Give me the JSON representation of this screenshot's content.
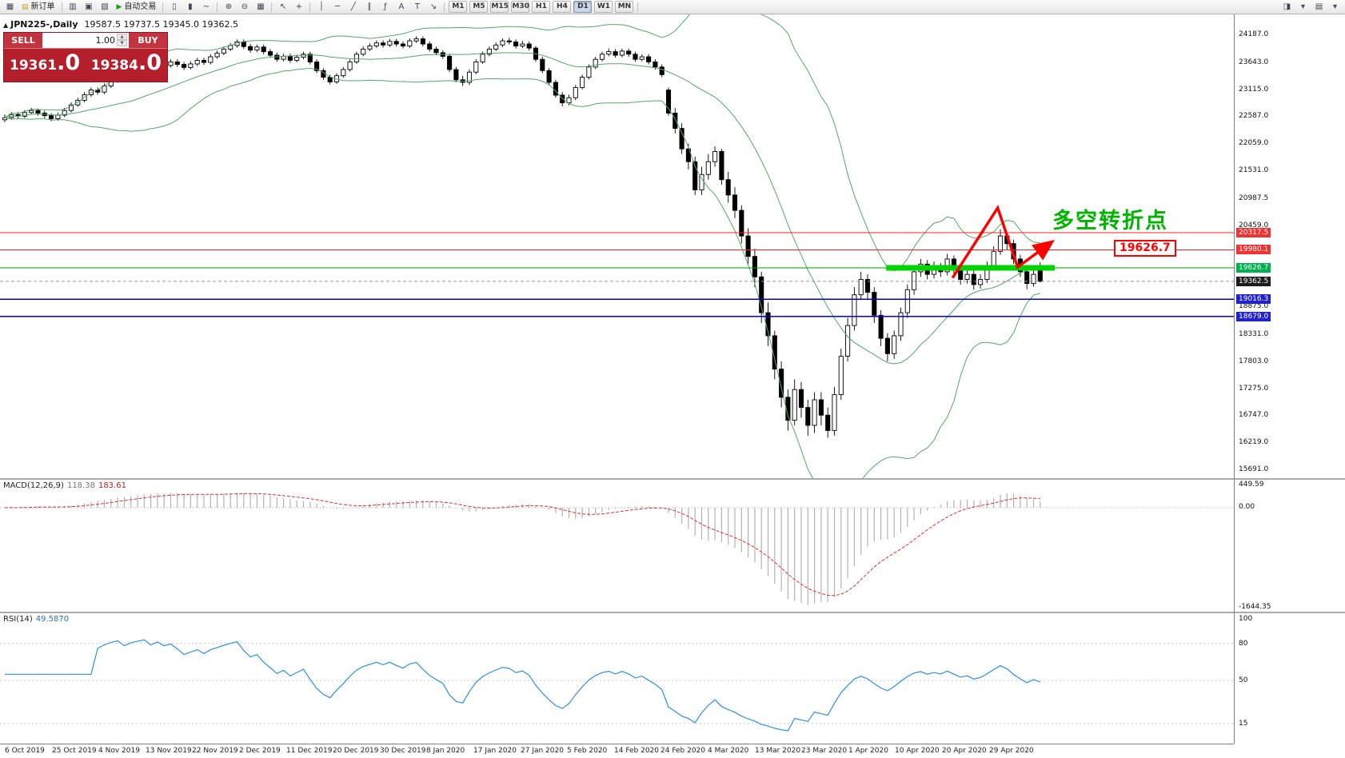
{
  "toolbar": {
    "items": [
      {
        "t": "icon",
        "g": "▦",
        "n": "new-chart-icon"
      },
      {
        "t": "btn",
        "g": "▤",
        "gc": "#c8a020",
        "l": "新订单",
        "n": "new-order-button"
      },
      {
        "t": "sep"
      },
      {
        "t": "icon",
        "g": "▥",
        "n": "market-watch-icon"
      },
      {
        "t": "icon",
        "g": "▣",
        "n": "data-window-icon"
      },
      {
        "t": "icon",
        "g": "▧",
        "n": "navigator-icon"
      },
      {
        "t": "btn",
        "g": "▶",
        "gc": "#18a018",
        "l": "自动交易",
        "n": "autotrading-button"
      },
      {
        "t": "sep"
      },
      {
        "t": "icon",
        "g": "▯",
        "n": "bar-chart-mode-icon"
      },
      {
        "t": "icon",
        "g": "▮",
        "n": "candlestick-mode-icon"
      },
      {
        "t": "icon",
        "g": "~",
        "n": "line-chart-mode-icon"
      },
      {
        "t": "sep"
      },
      {
        "t": "icon",
        "g": "⊕",
        "n": "zoom-in-icon"
      },
      {
        "t": "icon",
        "g": "⊖",
        "n": "zoom-out-icon"
      },
      {
        "t": "icon",
        "g": "▦",
        "n": "tile-windows-icon"
      },
      {
        "t": "sep"
      },
      {
        "t": "icon",
        "g": "↖",
        "n": "cursor-icon"
      },
      {
        "t": "icon",
        "g": "+",
        "n": "crosshair-icon"
      },
      {
        "t": "sep"
      },
      {
        "t": "icon",
        "g": "│",
        "n": "vertical-line-icon"
      },
      {
        "t": "icon",
        "g": "─",
        "n": "horizontal-line-icon"
      },
      {
        "t": "icon",
        "g": "╱",
        "n": "trendline-icon"
      },
      {
        "t": "icon",
        "g": "∥",
        "n": "channel-icon"
      },
      {
        "t": "icon",
        "g": "ƒ",
        "n": "fibonacci-icon"
      },
      {
        "t": "icon",
        "g": "A",
        "n": "text-icon"
      },
      {
        "t": "icon",
        "g": "T",
        "n": "text-label-icon"
      },
      {
        "t": "icon",
        "g": "↘",
        "n": "arrow-tools-icon"
      },
      {
        "t": "sep"
      },
      {
        "t": "tfgroup"
      },
      {
        "t": "sep"
      },
      {
        "t": "right"
      },
      {
        "t": "icon",
        "g": "◨",
        "n": "chart-window-icon"
      },
      {
        "t": "icon",
        "g": "▾",
        "n": "dropdown-icon"
      },
      {
        "t": "icon",
        "g": "▤",
        "n": "profiles-icon"
      },
      {
        "t": "icon",
        "g": "▾",
        "n": "dropdown-icon"
      }
    ],
    "timeframes": [
      "M1",
      "M5",
      "M15",
      "M30",
      "H1",
      "H4",
      "D1",
      "W1",
      "MN"
    ],
    "active_timeframe": "D1"
  },
  "trade_panel": {
    "sell_label": "SELL",
    "buy_label": "BUY",
    "volume": "1.00",
    "sell_price": "19361.0",
    "buy_price": "19384.0"
  },
  "chart": {
    "symbol": "JPN225-,Daily",
    "ohlc": "19587.5 19737.5 19345.0 19362.5"
  },
  "annotations": {
    "turning_point_text": "多空转折点",
    "level_label": "19626.7"
  },
  "macd": {
    "label": "MACD(12,26,9)",
    "value_main": "118.38",
    "value_signal": "183.61",
    "axis_labels": [
      "449.59",
      "0.00",
      "-1644.35"
    ]
  },
  "rsi": {
    "label": "RSI(14)",
    "value": "49.5870",
    "levels": [
      80,
      50,
      15
    ],
    "axis_labels": [
      "100",
      "80",
      "50",
      "15"
    ]
  },
  "axis": {
    "price_ticks": [
      24187.0,
      23643.0,
      23115.0,
      22587.0,
      22059.0,
      21531.0,
      20987.5,
      20459.0,
      18875.0,
      18331.0,
      17803.0,
      17275.0,
      16747.0,
      16219.0,
      15691.0
    ],
    "badges": [
      {
        "text": "20317.5",
        "price": 20317.5,
        "bg": "#ee3333"
      },
      {
        "text": "19980.1",
        "price": 19980.1,
        "bg": "#ee3333"
      },
      {
        "text": "19626.7",
        "price": 19626.7,
        "bg": "#00b050"
      },
      {
        "text": "19362.5",
        "price": 19362.5,
        "bg": "#1c1c1c"
      },
      {
        "text": "19016.3",
        "price": 19016.3,
        "bg": "#2222cc"
      },
      {
        "text": "18679.0",
        "price": 18679.0,
        "bg": "#2222cc"
      }
    ],
    "dates": [
      "6 Oct 2019",
      "25 Oct 2019",
      "4 Nov 2019",
      "13 Nov 2019",
      "22 Nov 2019",
      "2 Dec 2019",
      "11 Dec 2019",
      "20 Dec 2019",
      "30 Dec 2019",
      "8 Jan 2020",
      "17 Jan 2020",
      "27 Jan 2020",
      "5 Feb 2020",
      "14 Feb 2020",
      "24 Feb 2020",
      "4 Mar 2020",
      "13 Mar 2020",
      "23 Mar 2020",
      "1 Apr 2020",
      "10 Apr 2020",
      "20 Apr 2020",
      "29 Apr 2020"
    ]
  },
  "chart_data": {
    "type": "candlestick",
    "symbol": "JPN225",
    "timeframe": "Daily",
    "candles": [
      [
        22520,
        22620,
        22470,
        22560
      ],
      [
        22560,
        22670,
        22520,
        22620
      ],
      [
        22620,
        22670,
        22540,
        22590
      ],
      [
        22590,
        22710,
        22550,
        22660
      ],
      [
        22660,
        22750,
        22620,
        22700
      ],
      [
        22700,
        22740,
        22600,
        22650
      ],
      [
        22650,
        22700,
        22550,
        22600
      ],
      [
        22600,
        22650,
        22490,
        22540
      ],
      [
        22540,
        22660,
        22500,
        22610
      ],
      [
        22610,
        22750,
        22570,
        22700
      ],
      [
        22700,
        22860,
        22660,
        22810
      ],
      [
        22810,
        22950,
        22770,
        22900
      ],
      [
        22900,
        23060,
        22860,
        23010
      ],
      [
        23010,
        23150,
        22970,
        23100
      ],
      [
        23100,
        23150,
        23010,
        23060
      ],
      [
        23060,
        23230,
        23020,
        23180
      ],
      [
        23180,
        23330,
        23140,
        23280
      ],
      [
        23280,
        23400,
        23240,
        23350
      ],
      [
        23350,
        23400,
        23250,
        23300
      ],
      [
        23300,
        23470,
        23260,
        23420
      ],
      [
        23420,
        23530,
        23380,
        23480
      ],
      [
        23480,
        23600,
        23440,
        23550
      ],
      [
        23550,
        23600,
        23450,
        23500
      ],
      [
        23500,
        23670,
        23460,
        23620
      ],
      [
        23620,
        23670,
        23530,
        23580
      ],
      [
        23580,
        23700,
        23540,
        23650
      ],
      [
        23650,
        23700,
        23550,
        23600
      ],
      [
        23600,
        23650,
        23490,
        23540
      ],
      [
        23540,
        23660,
        23500,
        23610
      ],
      [
        23610,
        23730,
        23570,
        23680
      ],
      [
        23680,
        23730,
        23590,
        23640
      ],
      [
        23640,
        23800,
        23600,
        23750
      ],
      [
        23750,
        23870,
        23710,
        23820
      ],
      [
        23820,
        23950,
        23780,
        23900
      ],
      [
        23900,
        24020,
        23860,
        23970
      ],
      [
        23970,
        24090,
        23930,
        24040
      ],
      [
        24040,
        24090,
        23900,
        23950
      ],
      [
        23950,
        24000,
        23830,
        23880
      ],
      [
        23880,
        23990,
        23840,
        23940
      ],
      [
        23940,
        23990,
        23800,
        23850
      ],
      [
        23850,
        23900,
        23730,
        23780
      ],
      [
        23780,
        23830,
        23650,
        23700
      ],
      [
        23700,
        23810,
        23660,
        23760
      ],
      [
        23760,
        23810,
        23630,
        23680
      ],
      [
        23680,
        23790,
        23640,
        23740
      ],
      [
        23740,
        23850,
        23700,
        23800
      ],
      [
        23800,
        23850,
        23600,
        23650
      ],
      [
        23650,
        23700,
        23430,
        23480
      ],
      [
        23480,
        23530,
        23300,
        23350
      ],
      [
        23350,
        23400,
        23210,
        23260
      ],
      [
        23260,
        23430,
        23220,
        23380
      ],
      [
        23380,
        23550,
        23340,
        23500
      ],
      [
        23500,
        23700,
        23460,
        23650
      ],
      [
        23650,
        23850,
        23610,
        23800
      ],
      [
        23800,
        23950,
        23760,
        23900
      ],
      [
        23900,
        24010,
        23860,
        23960
      ],
      [
        23960,
        24070,
        23920,
        24020
      ],
      [
        24020,
        24070,
        23930,
        23980
      ],
      [
        23980,
        24100,
        23940,
        24050
      ],
      [
        24050,
        24100,
        23950,
        24000
      ],
      [
        24000,
        24050,
        23910,
        23960
      ],
      [
        23960,
        24110,
        23920,
        24060
      ],
      [
        24060,
        24150,
        24020,
        24100
      ],
      [
        24100,
        24150,
        23950,
        24000
      ],
      [
        24000,
        24050,
        23850,
        23900
      ],
      [
        23900,
        23950,
        23780,
        23830
      ],
      [
        23830,
        23880,
        23710,
        23760
      ],
      [
        23760,
        23800,
        23450,
        23500
      ],
      [
        23500,
        23550,
        23250,
        23300
      ],
      [
        23300,
        23380,
        23180,
        23250
      ],
      [
        23250,
        23500,
        23200,
        23450
      ],
      [
        23450,
        23700,
        23410,
        23650
      ],
      [
        23650,
        23850,
        23610,
        23800
      ],
      [
        23800,
        23950,
        23760,
        23900
      ],
      [
        23900,
        24030,
        23860,
        23980
      ],
      [
        23980,
        24110,
        23940,
        24060
      ],
      [
        24060,
        24120,
        23990,
        24040
      ],
      [
        24040,
        24090,
        23910,
        23960
      ],
      [
        23960,
        24060,
        23920,
        24000
      ],
      [
        24000,
        24050,
        23870,
        23920
      ],
      [
        23920,
        23960,
        23650,
        23700
      ],
      [
        23700,
        23750,
        23430,
        23480
      ],
      [
        23480,
        23530,
        23200,
        23250
      ],
      [
        23250,
        23300,
        22950,
        23000
      ],
      [
        23000,
        23060,
        22780,
        22850
      ],
      [
        22850,
        23010,
        22800,
        22950
      ],
      [
        22950,
        23200,
        22900,
        23150
      ],
      [
        23150,
        23400,
        23110,
        23350
      ],
      [
        23350,
        23600,
        23310,
        23550
      ],
      [
        23550,
        23750,
        23510,
        23700
      ],
      [
        23700,
        23850,
        23660,
        23800
      ],
      [
        23800,
        23910,
        23760,
        23850
      ],
      [
        23850,
        23900,
        23730,
        23780
      ],
      [
        23780,
        23910,
        23740,
        23860
      ],
      [
        23860,
        23910,
        23750,
        23800
      ],
      [
        23800,
        23850,
        23650,
        23700
      ],
      [
        23700,
        23800,
        23660,
        23750
      ],
      [
        23750,
        23800,
        23600,
        23650
      ],
      [
        23650,
        23700,
        23500,
        23550
      ],
      [
        23550,
        23600,
        23350,
        23400
      ],
      [
        23100,
        23150,
        22600,
        22650
      ],
      [
        22650,
        22750,
        22250,
        22350
      ],
      [
        22350,
        22450,
        21850,
        21950
      ],
      [
        21950,
        22050,
        21550,
        21700
      ],
      [
        21700,
        21800,
        21050,
        21150
      ],
      [
        21150,
        21600,
        21050,
        21450
      ],
      [
        21450,
        21850,
        21350,
        21700
      ],
      [
        21700,
        22000,
        21600,
        21900
      ],
      [
        21900,
        21950,
        21250,
        21350
      ],
      [
        21350,
        21500,
        20900,
        21050
      ],
      [
        21050,
        21200,
        20600,
        20750
      ],
      [
        20750,
        20850,
        20100,
        20250
      ],
      [
        20250,
        20400,
        19700,
        19850
      ],
      [
        19850,
        20000,
        19250,
        19450
      ],
      [
        19450,
        19550,
        18550,
        18750
      ],
      [
        18750,
        18950,
        18100,
        18300
      ],
      [
        18300,
        18400,
        17450,
        17650
      ],
      [
        17650,
        17800,
        16900,
        17100
      ],
      [
        17100,
        17250,
        16450,
        16650
      ],
      [
        16650,
        17450,
        16550,
        17250
      ],
      [
        17250,
        17400,
        16700,
        16900
      ],
      [
        16900,
        17050,
        16350,
        16550
      ],
      [
        16550,
        17200,
        16400,
        17050
      ],
      [
        17050,
        17200,
        16550,
        16750
      ],
      [
        16750,
        16900,
        16310,
        16450
      ],
      [
        16450,
        17300,
        16350,
        17150
      ],
      [
        17150,
        18050,
        17050,
        17900
      ],
      [
        17900,
        18650,
        17800,
        18500
      ],
      [
        18500,
        19250,
        18400,
        19100
      ],
      [
        19100,
        19550,
        19000,
        19400
      ],
      [
        19400,
        19500,
        19000,
        19150
      ],
      [
        19150,
        19250,
        18550,
        18700
      ],
      [
        18700,
        18800,
        18100,
        18250
      ],
      [
        18250,
        18350,
        17800,
        17950
      ],
      [
        17950,
        18400,
        17850,
        18300
      ],
      [
        18300,
        18850,
        18200,
        18750
      ],
      [
        18750,
        19300,
        18650,
        19200
      ],
      [
        19200,
        19650,
        19100,
        19550
      ],
      [
        19550,
        19800,
        19450,
        19700
      ],
      [
        19700,
        19780,
        19400,
        19500
      ],
      [
        19500,
        19750,
        19420,
        19650
      ],
      [
        19650,
        19720,
        19450,
        19550
      ],
      [
        19550,
        19900,
        19480,
        19800
      ],
      [
        19800,
        19870,
        19500,
        19600
      ],
      [
        19600,
        19680,
        19300,
        19400
      ],
      [
        19400,
        19600,
        19320,
        19500
      ],
      [
        19500,
        19580,
        19200,
        19300
      ],
      [
        19300,
        19500,
        19220,
        19400
      ],
      [
        19400,
        19750,
        19330,
        19650
      ],
      [
        19650,
        20050,
        19580,
        19950
      ],
      [
        19950,
        20380,
        19880,
        20250
      ],
      [
        20250,
        20320,
        19980,
        20100
      ],
      [
        20100,
        20180,
        19700,
        19800
      ],
      [
        19800,
        19880,
        19450,
        19550
      ],
      [
        19550,
        19620,
        19210,
        19320
      ],
      [
        19320,
        19580,
        19260,
        19500
      ],
      [
        19587.5,
        19737.5,
        19345.0,
        19362.5
      ]
    ],
    "overlays": {
      "bollinger": {
        "period": 20,
        "deviation": 2,
        "color": "#55a868"
      },
      "hlines": [
        {
          "price": 20317.5,
          "color": "#ff2020",
          "width": 1
        },
        {
          "price": 19980.1,
          "color": "#ff2020",
          "width": 1
        },
        {
          "price": 19626.7,
          "color": "#00a000",
          "width": 1
        },
        {
          "price": 19016.3,
          "color": "#0000dd",
          "width": 1.5
        },
        {
          "price": 18679.0,
          "color": "#0000dd",
          "width": 1.5
        }
      ],
      "support_bar": {
        "price": 19626.7,
        "from_index": 132.8,
        "to_index": 158.2,
        "color": "#00d400"
      },
      "zigzag": {
        "color": "#ff0000",
        "points": [
          [
            142.8,
            19430
          ],
          [
            149.6,
            20800
          ],
          [
            152.6,
            19640
          ],
          [
            157.2,
            20080
          ]
        ]
      },
      "last_price": 19362.5
    }
  }
}
